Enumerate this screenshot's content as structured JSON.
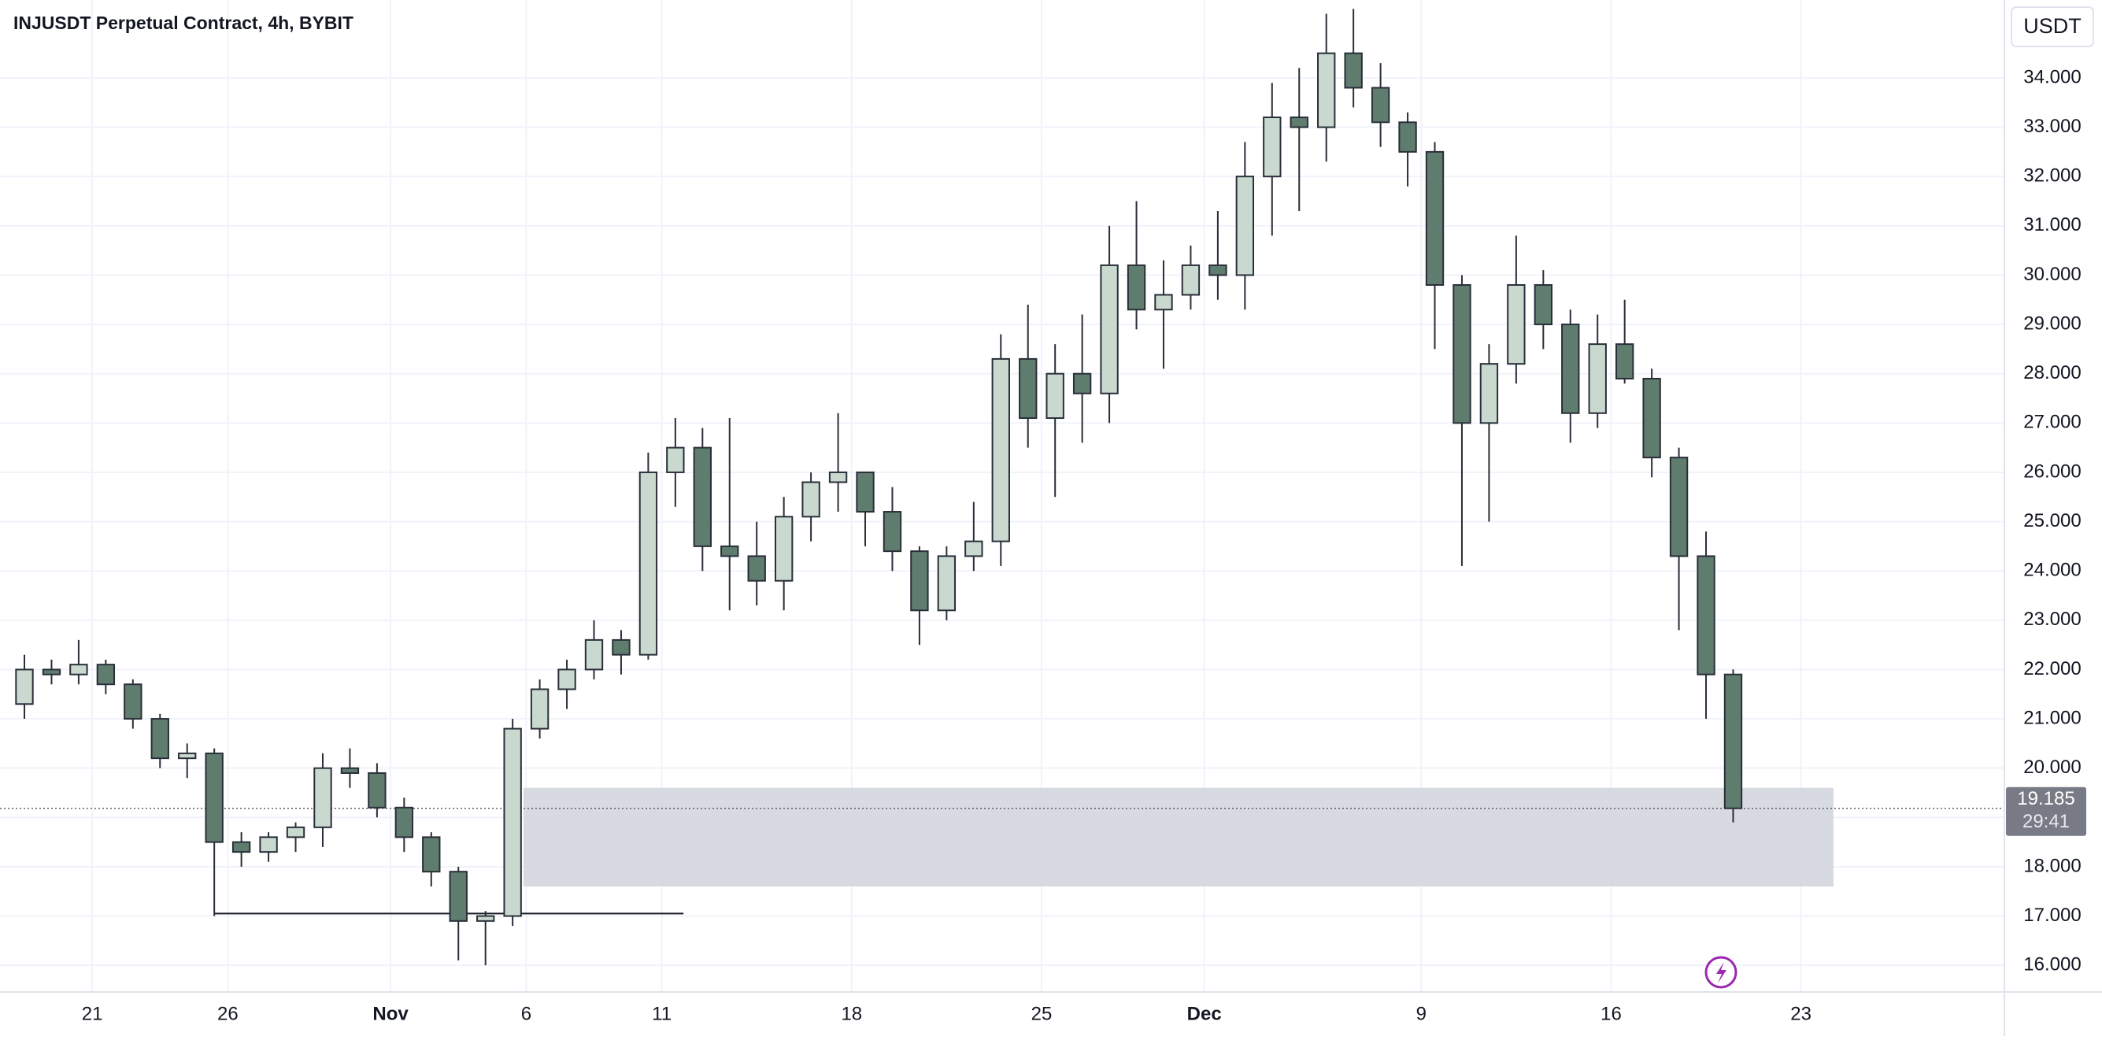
{
  "chart_data": {
    "type": "candlestick",
    "title": "INJUSDT Perpetual Contract, 4h, BYBIT",
    "currency": "USDT",
    "x": [
      18,
      19,
      20,
      21,
      22,
      23,
      24,
      25,
      26,
      27,
      28,
      29,
      30,
      31,
      32,
      33,
      34,
      35,
      36,
      37,
      38,
      39,
      40,
      41,
      42,
      43,
      44,
      45,
      46,
      47,
      48,
      49,
      50,
      51,
      52,
      53,
      54,
      55,
      56,
      57,
      58,
      59,
      60,
      61,
      62,
      63,
      64,
      65,
      66,
      67,
      68,
      69,
      70,
      71,
      72,
      73,
      74,
      75,
      76,
      77,
      78,
      79,
      80,
      81
    ],
    "open": [
      21.3,
      22.0,
      21.9,
      22.1,
      21.7,
      21.0,
      20.2,
      20.3,
      18.5,
      18.3,
      18.6,
      18.8,
      20.0,
      19.9,
      19.2,
      18.6,
      17.9,
      16.9,
      17.0,
      20.8,
      21.6,
      22.0,
      22.6,
      22.3,
      26.0,
      26.5,
      24.5,
      24.3,
      23.8,
      25.1,
      25.8,
      26.0,
      25.2,
      24.4,
      23.2,
      24.3,
      24.6,
      28.3,
      27.1,
      28.0,
      27.6,
      30.2,
      29.3,
      29.6,
      30.2,
      30.0,
      32.0,
      33.2,
      33.0,
      34.5,
      33.8,
      33.1,
      32.5,
      29.8,
      27.0,
      28.2,
      29.8,
      29.0,
      27.2,
      28.6,
      27.9,
      26.3,
      24.3,
      21.9
    ],
    "high": [
      22.3,
      22.2,
      22.6,
      22.2,
      21.8,
      21.1,
      20.5,
      20.4,
      18.7,
      18.7,
      18.9,
      20.3,
      20.4,
      20.1,
      19.4,
      18.7,
      18.0,
      17.1,
      21.0,
      21.8,
      22.2,
      23.0,
      22.8,
      26.4,
      27.1,
      26.9,
      27.1,
      25.0,
      25.5,
      26.0,
      27.2,
      26.0,
      25.7,
      24.5,
      24.5,
      25.4,
      28.8,
      29.4,
      28.6,
      29.2,
      31.0,
      31.5,
      30.3,
      30.6,
      31.3,
      32.7,
      33.9,
      34.2,
      35.3,
      35.4,
      34.3,
      33.3,
      32.7,
      30.0,
      28.6,
      30.8,
      30.1,
      29.3,
      29.2,
      29.5,
      28.1,
      26.5,
      24.8,
      22.0
    ],
    "low": [
      21.0,
      21.7,
      21.7,
      21.5,
      20.8,
      20.0,
      19.8,
      17.0,
      18.0,
      18.1,
      18.3,
      18.4,
      19.6,
      19.0,
      18.3,
      17.6,
      16.1,
      16.0,
      16.8,
      20.6,
      21.2,
      21.8,
      21.9,
      22.2,
      25.3,
      24.0,
      23.2,
      23.3,
      23.2,
      24.6,
      25.2,
      24.5,
      24.0,
      22.5,
      23.0,
      24.0,
      24.1,
      26.5,
      25.5,
      26.6,
      27.0,
      28.9,
      28.1,
      29.3,
      29.5,
      29.3,
      30.8,
      31.3,
      32.3,
      33.4,
      32.6,
      31.8,
      28.5,
      24.1,
      25.0,
      27.8,
      28.5,
      26.6,
      26.9,
      27.8,
      25.9,
      22.8,
      21.0,
      18.9
    ],
    "close": [
      22.0,
      21.9,
      22.1,
      21.7,
      21.0,
      20.2,
      20.3,
      18.5,
      18.3,
      18.6,
      18.8,
      20.0,
      19.9,
      19.2,
      18.6,
      17.9,
      16.9,
      17.0,
      20.8,
      21.6,
      22.0,
      22.6,
      22.3,
      26.0,
      26.5,
      24.5,
      24.3,
      23.8,
      25.1,
      25.8,
      26.0,
      25.2,
      24.4,
      23.2,
      24.3,
      24.6,
      28.3,
      27.1,
      28.0,
      27.6,
      30.2,
      29.3,
      29.6,
      30.2,
      30.0,
      32.0,
      33.2,
      33.0,
      34.5,
      33.8,
      33.1,
      32.5,
      29.8,
      27.0,
      28.2,
      29.8,
      29.0,
      27.2,
      28.6,
      27.9,
      26.3,
      24.3,
      21.9,
      19.185
    ],
    "up_color": "#c9d9cf",
    "down_color": "#5f7d6e",
    "border_color": "#2a2e39",
    "xlim": [
      17.6,
      91.5
    ],
    "xticks": [
      21,
      26,
      {
        "value": 32,
        "label": "Nov"
      },
      {
        "value": 37,
        "label": "6"
      },
      {
        "value": 42,
        "label": "11"
      },
      {
        "value": 49,
        "label": "18"
      },
      {
        "value": 56,
        "label": "25"
      },
      {
        "value": 62,
        "label": "Dec"
      },
      {
        "value": 70,
        "label": "9"
      },
      {
        "value": 77,
        "label": "16"
      },
      {
        "value": 84,
        "label": "23"
      }
    ],
    "ylim": [
      15.46,
      35.58
    ],
    "yticks": [
      {
        "value": 16,
        "label": "16.000"
      },
      {
        "value": 17,
        "label": "17.000"
      },
      {
        "value": 18,
        "label": "18.000"
      },
      {
        "value": 19,
        "label": "19.000"
      },
      {
        "value": 20,
        "label": "20.000"
      },
      {
        "value": 21,
        "label": "21.000"
      },
      {
        "value": 22,
        "label": "22.000"
      },
      {
        "value": 23,
        "label": "23.000"
      },
      {
        "value": 24,
        "label": "24.000"
      },
      {
        "value": 25,
        "label": "25.000"
      },
      {
        "value": 26,
        "label": "26.000"
      },
      {
        "value": 27,
        "label": "27.000"
      },
      {
        "value": 28,
        "label": "28.000"
      },
      {
        "value": 29,
        "label": "29.000"
      },
      {
        "value": 30,
        "label": "30.000"
      },
      {
        "value": 31,
        "label": "31.000"
      },
      {
        "value": 32,
        "label": "32.000"
      },
      {
        "value": 33,
        "label": "33.000"
      },
      {
        "value": 34,
        "label": "34.000"
      }
    ],
    "grid": true,
    "last_price": 19.185,
    "countdown": "29:41",
    "support_line": {
      "value": 17.05,
      "x": [
        25.5,
        42.8
      ]
    },
    "zone": {
      "y": [
        17.6,
        19.6
      ],
      "x": [
        36.9,
        85.2
      ]
    }
  }
}
